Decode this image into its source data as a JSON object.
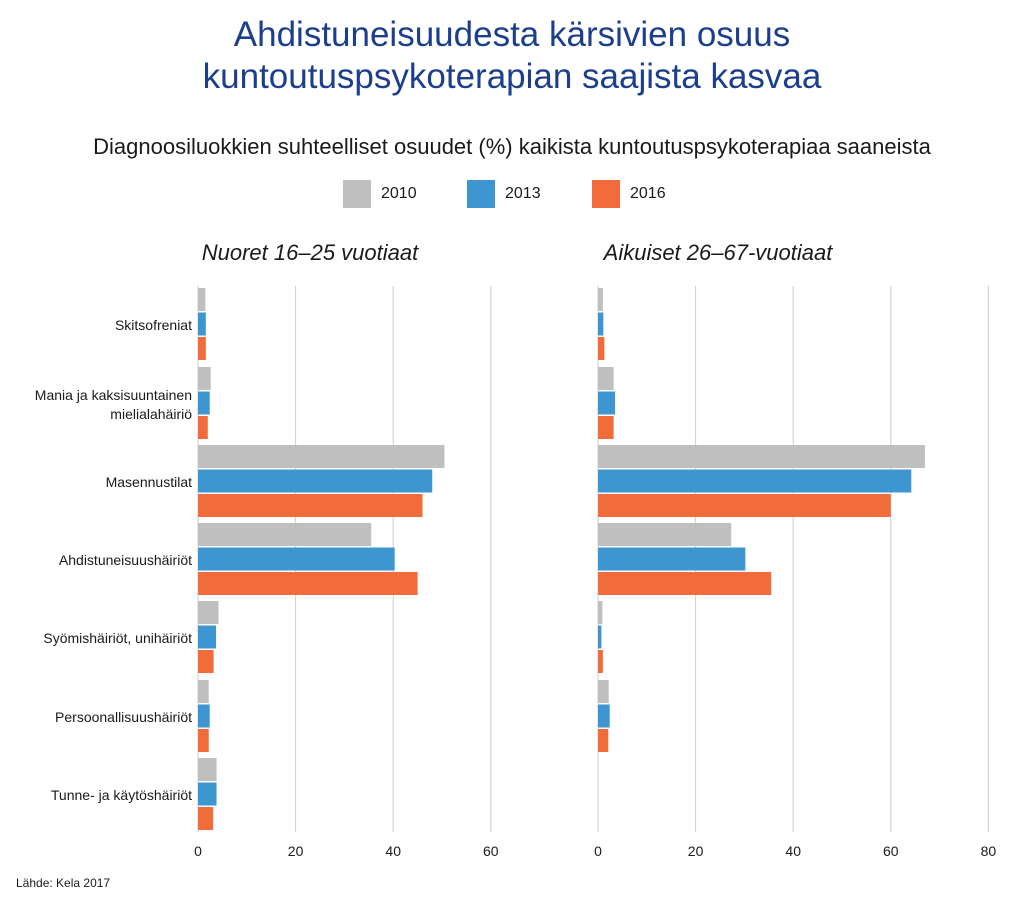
{
  "title_lines": [
    "Ahdistuneisuudesta kärsivien osuus",
    "kuntoutuspsykoterapian saajista kasvaa"
  ],
  "subtitle": "Diagnoosiluokkien suhteelliset osuudet (%) kaikista kuntoutuspsykoterapiaa saaneista",
  "source": "Lähde: Kela 2017",
  "colors": {
    "2010": "#bfbfbf",
    "2013": "#3d96cf",
    "2016": "#f26b3a",
    "grid": "#cccccc",
    "text": "#1a1a1a"
  },
  "legend": [
    {
      "label": "2010",
      "color": "#bfbfbf"
    },
    {
      "label": "2013",
      "color": "#3d96cf"
    },
    {
      "label": "2016",
      "color": "#f26b3a"
    }
  ],
  "chart_data": [
    {
      "type": "bar",
      "orientation": "horizontal",
      "title": "Nuoret 16–25 vuotiaat",
      "categories": [
        "Skitsofreniat",
        "Mania ja kaksisuuntainen mielialahäiriö",
        "Masennustilat",
        "Ahdistuneisuushäiriöt",
        "Syömishäiriöt, unihäiriöt",
        "Persoonallisuushäiriöt",
        "Tunne- ja käytöshäiriöt"
      ],
      "series": [
        {
          "name": "2010",
          "values": [
            1.5,
            2.6,
            50.5,
            35.5,
            4.2,
            2.2,
            3.8
          ]
        },
        {
          "name": "2013",
          "values": [
            1.6,
            2.4,
            48,
            40.3,
            3.7,
            2.4,
            3.8
          ]
        },
        {
          "name": "2016",
          "values": [
            1.6,
            2.0,
            46,
            45,
            3.2,
            2.2,
            3.1
          ]
        }
      ],
      "xlim": [
        0,
        65
      ],
      "ticks": [
        0,
        20,
        40,
        60
      ],
      "grid": true,
      "legend": "top-center"
    },
    {
      "type": "bar",
      "orientation": "horizontal",
      "title": "Aikuiset 26–67-vuotiaat",
      "categories": [
        "Skitsofreniat",
        "Mania ja kaksisuuntainen mielialahäiriö",
        "Masennustilat",
        "Ahdistuneisuushäiriöt",
        "Syömishäiriöt, unihäiriöt",
        "Persoonallisuushäiriöt",
        "Tunne- ja käytöshäiriöt"
      ],
      "series": [
        {
          "name": "2010",
          "values": [
            1.0,
            3.2,
            67,
            27.3,
            0.9,
            2.2,
            0
          ]
        },
        {
          "name": "2013",
          "values": [
            1.1,
            3.5,
            64.2,
            30.2,
            0.7,
            2.4,
            0
          ]
        },
        {
          "name": "2016",
          "values": [
            1.3,
            3.2,
            60,
            35.5,
            1.0,
            2.1,
            0
          ]
        }
      ],
      "xlim": [
        0,
        80
      ],
      "ticks": [
        0,
        20,
        40,
        60,
        80
      ],
      "grid": true,
      "legend": "top-center"
    }
  ]
}
